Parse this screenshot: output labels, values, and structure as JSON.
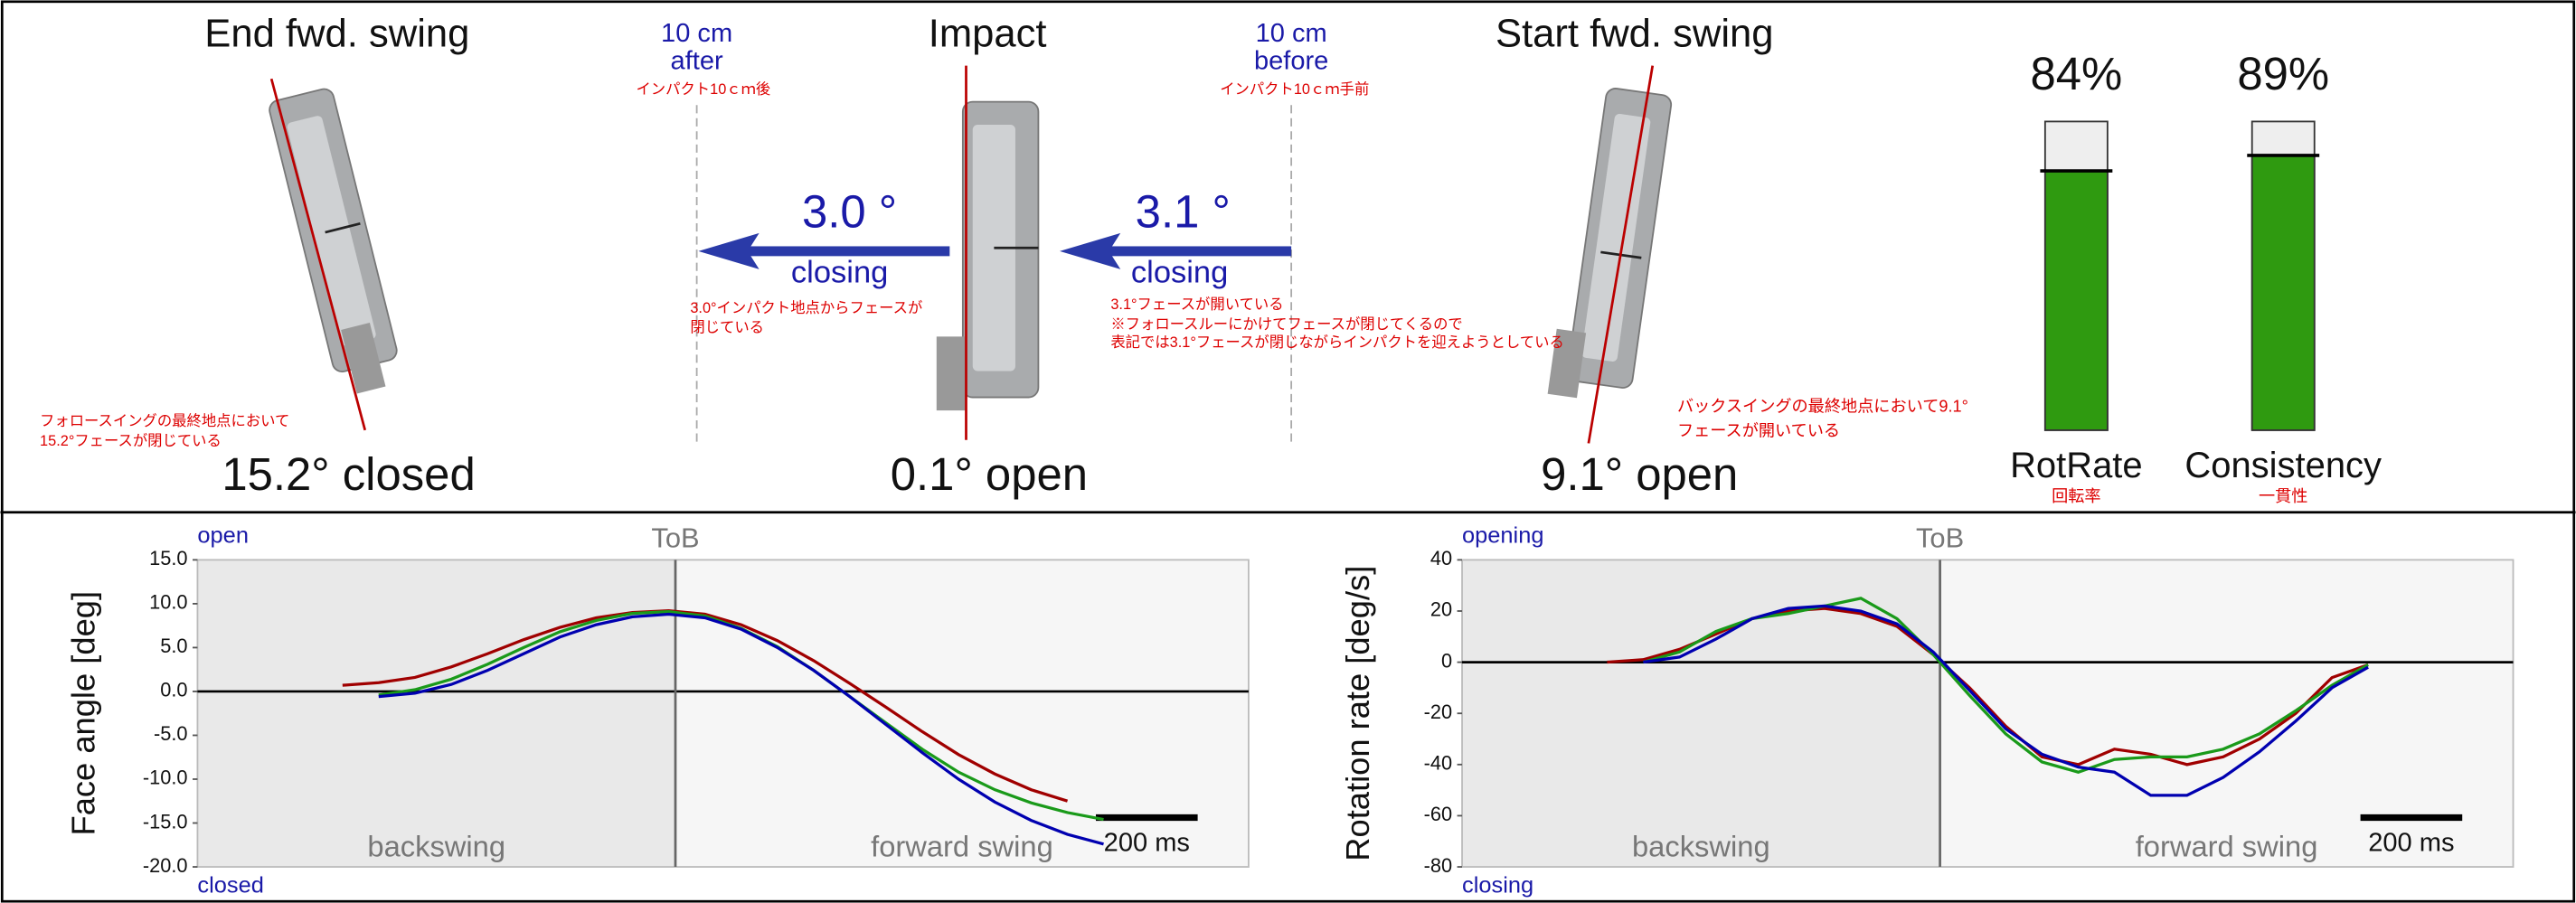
{
  "header": {
    "end_title": "End fwd. swing",
    "impact_title": "Impact",
    "start_title": "Start fwd. swing",
    "after_dist": "10 cm",
    "after_word": "after",
    "after_jp": "インパクト10ｃｍ後",
    "before_dist": "10 cm",
    "before_word": "before",
    "before_jp": "インパクト10ｃｍ手前",
    "after_angle": "3.0 °",
    "after_dir": "closing",
    "before_angle": "3.1 °",
    "before_dir": "closing",
    "after_note": [
      "3.0°インパクト地点からフェースが",
      "閉じている"
    ],
    "before_note": [
      "3.1°フェースが開いている",
      "※フォロースルーにかけてフェースが閉じてくるので",
      "表記では3.1°フェースが閉じながらインパクトを迎えようとしている"
    ],
    "end_note": [
      "フォロースイングの最終地点において",
      "15.2°フェースが閉じている"
    ],
    "start_note": [
      "バックスイングの最終地点において9.1°",
      "フェースが開いている"
    ],
    "end_value": "15.2°  closed",
    "impact_value": "0.1°  open",
    "start_value": "9.1°  open"
  },
  "chart_data": [
    {
      "type": "bar",
      "categories": [
        "RotRate",
        "Consistency"
      ],
      "category_notes": [
        "回転率",
        "一貫性"
      ],
      "values": [
        84,
        89
      ],
      "value_labels": [
        "84%",
        "89%"
      ],
      "ylim": [
        0,
        100
      ],
      "color": "#2f9a10"
    },
    {
      "type": "line",
      "ylabel": "Face angle [deg]",
      "top_label": "open",
      "bottom_label": "closed",
      "marker_label": "ToB",
      "regions": [
        "backswing",
        "forward swing"
      ],
      "scale_label": "200 ms",
      "ylim": [
        -20,
        15
      ],
      "yticks": [
        {
          "value": -20,
          "label": "-20.0"
        },
        {
          "value": -15,
          "label": "-15.0"
        },
        {
          "value": -10,
          "label": "-10.0"
        },
        {
          "value": -5,
          "label": "-5.0"
        },
        {
          "value": 0,
          "label": "0.0"
        },
        {
          "value": 5,
          "label": "5.0"
        },
        {
          "value": 10,
          "label": "10.0"
        },
        {
          "value": 15,
          "label": "15.0"
        }
      ],
      "series": [
        {
          "color": "#a00000",
          "values": [
            null,
            null,
            null,
            null,
            0.7,
            1.0,
            1.6,
            2.8,
            4.3,
            5.9,
            7.3,
            8.4,
            9.0,
            9.2,
            8.8,
            7.6,
            5.8,
            3.5,
            0.9,
            -1.8,
            -4.6,
            -7.2,
            -9.4,
            -11.2,
            -12.5,
            null,
            null,
            null,
            null,
            null
          ]
        },
        {
          "color": "#1a9a1a",
          "values": [
            null,
            null,
            null,
            null,
            null,
            -0.4,
            0.2,
            1.4,
            3.1,
            5.0,
            6.8,
            8.1,
            8.9,
            9.1,
            8.6,
            7.2,
            5.1,
            2.4,
            -0.6,
            -3.6,
            -6.6,
            -9.2,
            -11.2,
            -12.7,
            -13.8,
            -14.6,
            null,
            null,
            null,
            null
          ]
        },
        {
          "color": "#0000b0",
          "values": [
            null,
            null,
            null,
            null,
            null,
            -0.6,
            -0.2,
            0.8,
            2.4,
            4.3,
            6.2,
            7.6,
            8.5,
            8.8,
            8.4,
            7.1,
            5.0,
            2.4,
            -0.6,
            -3.8,
            -7.0,
            -10.0,
            -12.6,
            -14.7,
            -16.3,
            -17.4,
            null,
            null,
            null,
            null
          ]
        }
      ]
    },
    {
      "type": "line",
      "ylabel": "Rotation rate [deg/s]",
      "top_label": "opening",
      "bottom_label": "closing",
      "marker_label": "ToB",
      "regions": [
        "backswing",
        "forward swing"
      ],
      "scale_label": "200 ms",
      "ylim": [
        -80,
        40
      ],
      "yticks": [
        -80,
        -60,
        -40,
        -20,
        0,
        20,
        40
      ],
      "series": [
        {
          "color": "#a00000",
          "values": [
            null,
            null,
            null,
            null,
            0,
            1,
            5,
            11,
            17,
            20,
            21,
            19,
            14,
            3,
            -10,
            -25,
            -37,
            -40,
            -34,
            -36,
            -40,
            -37,
            -30,
            -20,
            -6,
            -1,
            null,
            null,
            null,
            null
          ]
        },
        {
          "color": "#1a9a1a",
          "values": [
            null,
            null,
            null,
            null,
            null,
            0,
            4,
            12,
            17,
            19,
            22,
            25,
            17,
            3,
            -13,
            -28,
            -39,
            -43,
            -38,
            -37,
            -37,
            -34,
            -28,
            -19,
            -9,
            -1,
            null,
            null,
            null,
            null
          ]
        },
        {
          "color": "#0000b0",
          "values": [
            null,
            null,
            null,
            null,
            null,
            0,
            2,
            9,
            17,
            21,
            22,
            20,
            15,
            4,
            -11,
            -26,
            -36,
            -41,
            -43,
            -52,
            -52,
            -45,
            -35,
            -23,
            -10,
            -2,
            null,
            null,
            null,
            null
          ]
        }
      ]
    }
  ]
}
